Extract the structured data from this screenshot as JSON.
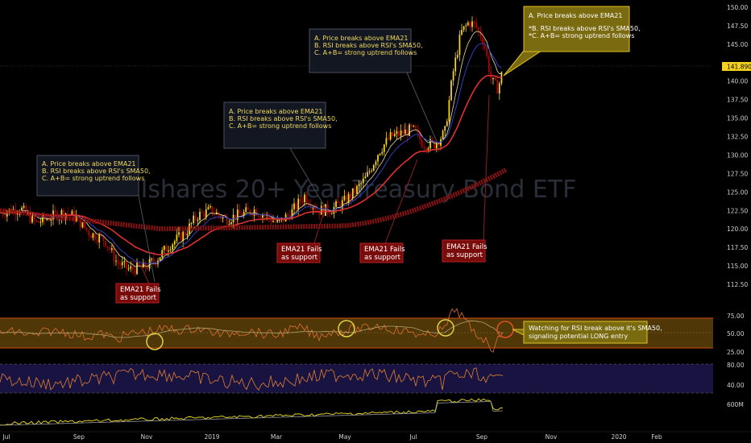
{
  "watermark": {
    "title": "Ishares 20+ Year Treasury Bond ETF"
  },
  "last_price": "141.890",
  "chart_data": {
    "type": "candlestick",
    "price_axis": {
      "ticks": [
        "150.00",
        "147.50",
        "145.00",
        "141.890",
        "140.00",
        "137.50",
        "135.00",
        "132.50",
        "130.00",
        "127.50",
        "125.00",
        "122.50",
        "120.00",
        "117.50",
        "115.00",
        "112.50"
      ],
      "ylim": [
        111,
        151
      ]
    },
    "rsi_axis": {
      "ticks": [
        "75.00",
        "50.00",
        "25.00"
      ]
    },
    "osc_axis": {
      "ticks": [
        "80.00",
        "40.00"
      ]
    },
    "volume_axis": {
      "ticks": [
        "600M"
      ]
    },
    "x_ticks": [
      "Jul",
      "Sep",
      "Nov",
      "2019",
      "Mar",
      "May",
      "Jul",
      "Sep",
      "Nov",
      "2020",
      "Feb"
    ],
    "ema21_color": "#e03030",
    "sma_long_color": "#8b1010",
    "candle_up": "#f5d21e",
    "candle_down": "#b00000"
  },
  "annotations": [
    {
      "lines": [
        "A. Price breaks above EMA21",
        "B. RSI breaks above RSI's SMA50,",
        "C. A+B= strong uptrend follows"
      ]
    },
    {
      "lines": [
        "A. Price breaks above EMA21",
        "B. RSI breaks above RSI's SMA50,",
        "C. A+B= strong uptrend follows"
      ]
    },
    {
      "lines": [
        "A. Price breaks above EMA21",
        "B. RSI breaks above RSI's SMA50,",
        "C. A+B= strong uptrend follows"
      ]
    },
    {
      "lines": [
        "A. Price breaks above EMA21",
        "",
        "*B. RSI breaks above RSI's SMA50,",
        "*C. A+B= strong uptrend follows"
      ]
    }
  ],
  "fail_labels": [
    {
      "lines": [
        "EMA21 Fails",
        "as support"
      ]
    },
    {
      "lines": [
        "EMA21 Fails",
        "as support"
      ]
    },
    {
      "lines": [
        "EMA21 Fails",
        "as support"
      ]
    },
    {
      "lines": [
        "EMA21 Fails",
        "as support"
      ]
    }
  ],
  "rsi_note": {
    "lines": [
      "Watching for RSI break above it's SMA50,",
      "signaling potential LONG entry"
    ]
  }
}
